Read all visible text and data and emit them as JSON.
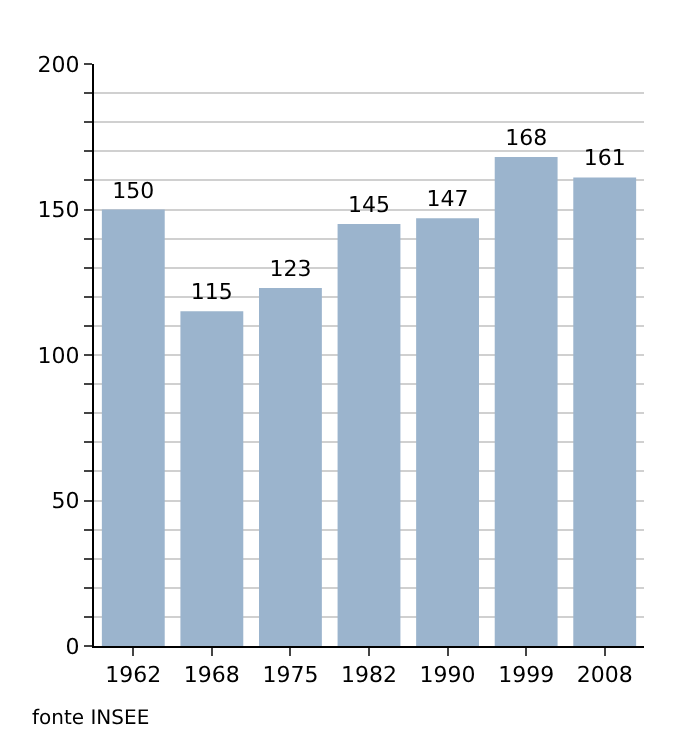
{
  "chart_data": {
    "type": "bar",
    "categories": [
      "1962",
      "1968",
      "1975",
      "1982",
      "1990",
      "1999",
      "2008"
    ],
    "values": [
      150,
      115,
      123,
      145,
      147,
      168,
      161
    ],
    "color": "#9bb4cd",
    "data_labels": true,
    "ylim": [
      0,
      200
    ],
    "yticks": [
      0,
      {
        "value": 10,
        "label": null
      },
      {
        "value": 20,
        "label": null
      },
      {
        "value": 30,
        "label": null
      },
      {
        "value": 40,
        "label": null
      },
      50,
      {
        "value": 60,
        "label": null
      },
      {
        "value": 70,
        "label": null
      },
      {
        "value": 80,
        "label": null
      },
      {
        "value": 90,
        "label": null
      },
      100,
      {
        "value": 110,
        "label": null
      },
      {
        "value": 120,
        "label": null
      },
      {
        "value": 130,
        "label": null
      },
      {
        "value": 140,
        "label": null
      },
      150,
      {
        "value": 160,
        "label": null
      },
      {
        "value": 170,
        "label": null
      },
      {
        "value": 180,
        "label": null
      },
      {
        "value": 190,
        "label": null
      },
      200
    ],
    "grid": "y",
    "legend": false,
    "annotations": [
      "fonte INSEE"
    ]
  }
}
